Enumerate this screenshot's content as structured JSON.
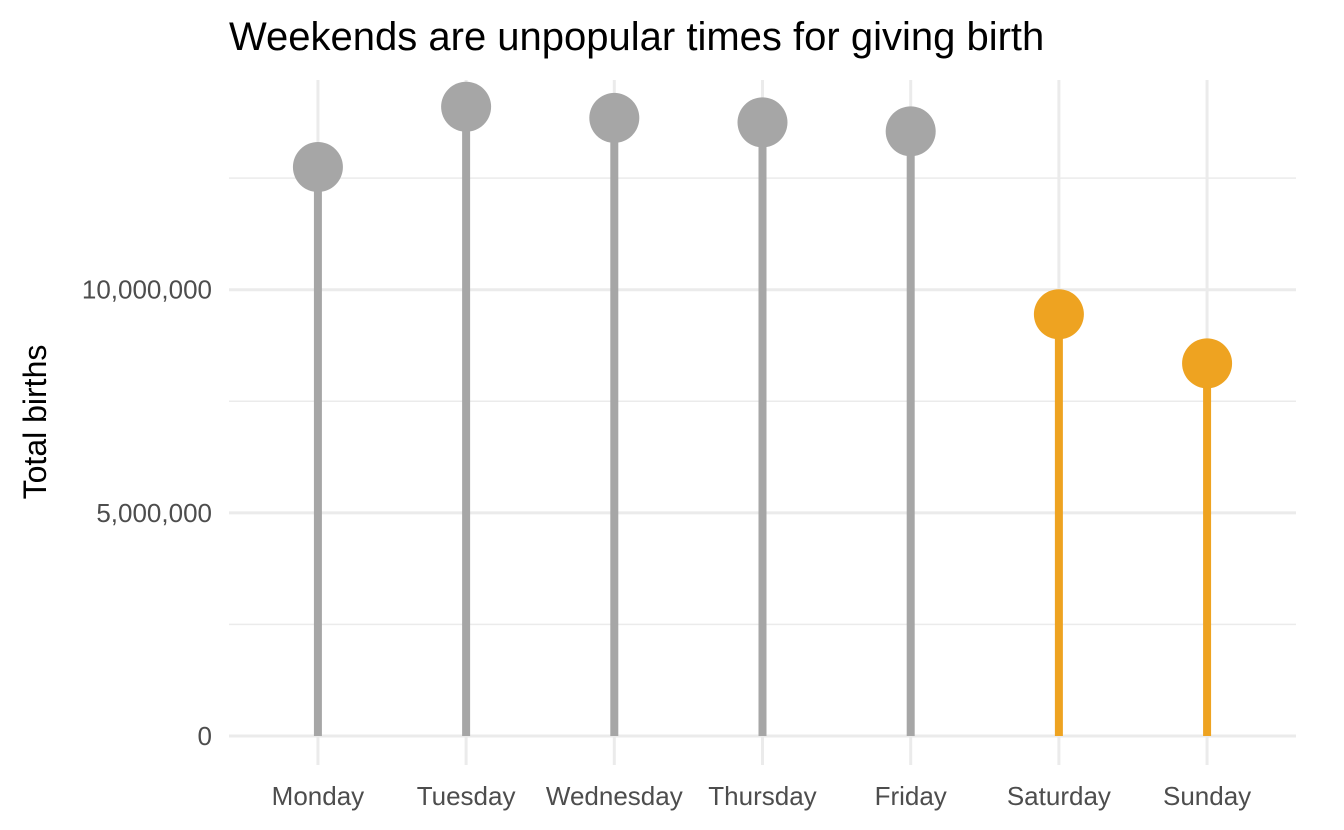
{
  "chart_data": {
    "type": "lollipop",
    "title": "Weekends are unpopular times for giving birth",
    "xlabel": "",
    "ylabel": "Total births",
    "categories": [
      "Monday",
      "Tuesday",
      "Wednesday",
      "Thursday",
      "Friday",
      "Saturday",
      "Sunday"
    ],
    "values": [
      12750000,
      14100000,
      13850000,
      13750000,
      13550000,
      9450000,
      8350000
    ],
    "weekend": [
      false,
      false,
      false,
      false,
      false,
      true,
      true
    ],
    "ylim": [
      -650000,
      14700000
    ],
    "y_ticks": [
      0,
      5000000,
      10000000
    ],
    "y_tick_labels": [
      "0",
      "5,000,000",
      "10,000,000"
    ],
    "y_minor_ticks": [
      2500000,
      7500000,
      12500000
    ],
    "grid": true,
    "legend": "none",
    "colors": {
      "weekday": "#a6a6a6",
      "weekend": "#eea321",
      "grid": "#ebebeb",
      "tick_text": "#4d4d4d"
    }
  }
}
